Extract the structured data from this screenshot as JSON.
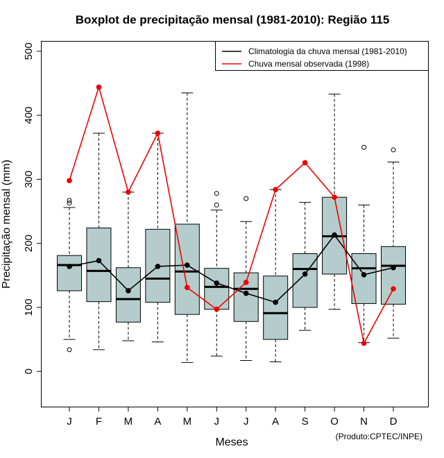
{
  "chart_data": {
    "type": "box",
    "title": "Boxplot de precipitação mensal (1981-2010): Região 115",
    "xlabel": "Meses",
    "ylabel": "Precipitação mensal (mm)",
    "ylim": [
      -55,
      515
    ],
    "yticks": [
      0,
      100,
      200,
      300,
      400,
      500
    ],
    "categories": [
      "J",
      "F",
      "M",
      "A",
      "M",
      "J",
      "J",
      "A",
      "S",
      "O",
      "N",
      "D"
    ],
    "boxes": [
      {
        "min": 50,
        "q1": 126,
        "median": 166,
        "q3": 181,
        "max": 256,
        "outliers": [
          34,
          263,
          267
        ]
      },
      {
        "min": 34,
        "q1": 109,
        "median": 157,
        "q3": 224,
        "max": 372,
        "outliers": []
      },
      {
        "min": 48,
        "q1": 77,
        "median": 113,
        "q3": 162,
        "max": 280,
        "outliers": []
      },
      {
        "min": 46,
        "q1": 108,
        "median": 145,
        "q3": 222,
        "max": 372,
        "outliers": []
      },
      {
        "min": 14,
        "q1": 89,
        "median": 156,
        "q3": 230,
        "max": 435,
        "outliers": []
      },
      {
        "min": 24,
        "q1": 97,
        "median": 132,
        "q3": 161,
        "max": 252,
        "outliers": [
          260,
          278
        ]
      },
      {
        "min": 17,
        "q1": 78,
        "median": 129,
        "q3": 154,
        "max": 234,
        "outliers": [
          270
        ]
      },
      {
        "min": 15,
        "q1": 50,
        "median": 91,
        "q3": 149,
        "max": 284,
        "outliers": []
      },
      {
        "min": 64,
        "q1": 100,
        "median": 160,
        "q3": 184,
        "max": 264,
        "outliers": []
      },
      {
        "min": 97,
        "q1": 152,
        "median": 211,
        "q3": 272,
        "max": 433,
        "outliers": []
      },
      {
        "min": 45,
        "q1": 106,
        "median": 161,
        "q3": 184,
        "max": 260,
        "outliers": [
          350
        ]
      },
      {
        "min": 52,
        "q1": 105,
        "median": 165,
        "q3": 195,
        "max": 327,
        "outliers": [
          346
        ]
      }
    ],
    "series": [
      {
        "name": "Climatologia da chuva mensal (1981-2010)",
        "color": "#000000",
        "values": [
          164,
          173,
          126,
          164,
          166,
          138,
          122,
          108,
          152,
          213,
          151,
          162
        ]
      },
      {
        "name": "Chuva mensal observada (1998)",
        "color": "#ee0000",
        "values": [
          298,
          444,
          280,
          372,
          131,
          97,
          139,
          284,
          326,
          272,
          44,
          129
        ]
      }
    ],
    "legend_position": "top-right",
    "box_fill": "#b4cccc",
    "credit": "(Produto:CPTEC/INPE)"
  }
}
